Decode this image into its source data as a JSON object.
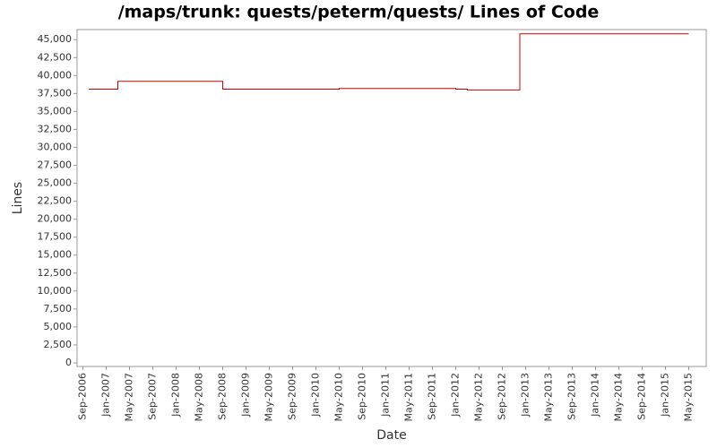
{
  "chart_data": {
    "type": "line",
    "title": "/maps/trunk: quests/peterm/quests/ Lines of Code",
    "x_label": "Date",
    "y_label": "Lines",
    "x": [
      "2006-10",
      "2007-03",
      "2008-09",
      "2010-05",
      "2012-01",
      "2012-03",
      "2012-12",
      "2015-05"
    ],
    "values": [
      38100,
      39200,
      38100,
      38200,
      38100,
      38000,
      45800,
      45800
    ],
    "color": "#cc0000",
    "step": true,
    "xlim": [
      "2006-08",
      "2015-08"
    ],
    "xticks": [
      {
        "value": "2006-09",
        "label": "Sep-2006"
      },
      {
        "value": "2007-01",
        "label": "Jan-2007"
      },
      {
        "value": "2007-05",
        "label": "May-2007"
      },
      {
        "value": "2007-09",
        "label": "Sep-2007"
      },
      {
        "value": "2008-01",
        "label": "Jan-2008"
      },
      {
        "value": "2008-05",
        "label": "May-2008"
      },
      {
        "value": "2008-09",
        "label": "Sep-2008"
      },
      {
        "value": "2009-01",
        "label": "Jan-2009"
      },
      {
        "value": "2009-05",
        "label": "May-2009"
      },
      {
        "value": "2009-09",
        "label": "Sep-2009"
      },
      {
        "value": "2010-01",
        "label": "Jan-2010"
      },
      {
        "value": "2010-05",
        "label": "May-2010"
      },
      {
        "value": "2010-09",
        "label": "Sep-2010"
      },
      {
        "value": "2011-01",
        "label": "Jan-2011"
      },
      {
        "value": "2011-05",
        "label": "May-2011"
      },
      {
        "value": "2011-09",
        "label": "Sep-2011"
      },
      {
        "value": "2012-01",
        "label": "Jan-2012"
      },
      {
        "value": "2012-05",
        "label": "May-2012"
      },
      {
        "value": "2012-09",
        "label": "Sep-2012"
      },
      {
        "value": "2013-01",
        "label": "Jan-2013"
      },
      {
        "value": "2013-05",
        "label": "May-2013"
      },
      {
        "value": "2013-09",
        "label": "Sep-2013"
      },
      {
        "value": "2014-01",
        "label": "Jan-2014"
      },
      {
        "value": "2014-05",
        "label": "May-2014"
      },
      {
        "value": "2014-09",
        "label": "Sep-2014"
      },
      {
        "value": "2015-01",
        "label": "Jan-2015"
      },
      {
        "value": "2015-05",
        "label": "May-2015"
      }
    ],
    "ylim": [
      -500,
      46400
    ],
    "yticks": [
      0,
      {
        "value": 2500,
        "label": "2,500"
      },
      {
        "value": 5000,
        "label": "5,000"
      },
      {
        "value": 7500,
        "label": "7,500"
      },
      {
        "value": 10000,
        "label": "10,000"
      },
      {
        "value": 12500,
        "label": "12,500"
      },
      {
        "value": 15000,
        "label": "15,000"
      },
      {
        "value": 17500,
        "label": "17,500"
      },
      {
        "value": 20000,
        "label": "20,000"
      },
      {
        "value": 22500,
        "label": "22,500"
      },
      {
        "value": 25000,
        "label": "25,000"
      },
      {
        "value": 27500,
        "label": "27,500"
      },
      {
        "value": 30000,
        "label": "30,000"
      },
      {
        "value": 32500,
        "label": "32,500"
      },
      {
        "value": 35000,
        "label": "35,000"
      },
      {
        "value": 37500,
        "label": "37,500"
      },
      {
        "value": 40000,
        "label": "40,000"
      },
      {
        "value": 42500,
        "label": "42,500"
      },
      {
        "value": 45000,
        "label": "45,000"
      }
    ],
    "grid": false
  }
}
